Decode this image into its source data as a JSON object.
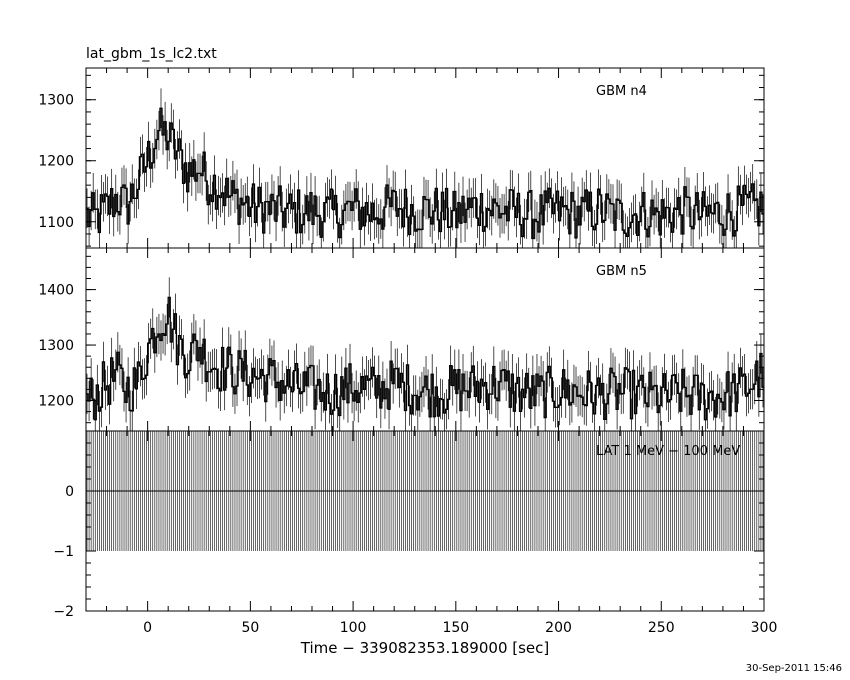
{
  "title": "lat_gbm_1s_lc2.txt",
  "xlabel": "Time − 339082353.189000 [sec]",
  "timestamp": "30-Sep-2011 15:46",
  "chart_data": [
    {
      "type": "line",
      "panel": "top",
      "label": "GBM n4",
      "x_range": [
        -30,
        300
      ],
      "ylim": [
        1057,
        1352
      ],
      "y_ticks": [
        1100,
        1200,
        1300
      ],
      "x": [
        -30,
        -25,
        -20,
        -15,
        -10,
        -5,
        0,
        5,
        10,
        15,
        20,
        25,
        30,
        35,
        40,
        45,
        50,
        60,
        70,
        80,
        90,
        100,
        110,
        120,
        130,
        140,
        150,
        160,
        170,
        180,
        190,
        200,
        210,
        220,
        230,
        240,
        250,
        260,
        270,
        280,
        290,
        300
      ],
      "y": [
        1110,
        1105,
        1120,
        1140,
        1125,
        1160,
        1200,
        1250,
        1240,
        1210,
        1180,
        1190,
        1165,
        1160,
        1140,
        1135,
        1125,
        1120,
        1115,
        1118,
        1112,
        1120,
        1115,
        1125,
        1118,
        1120,
        1110,
        1125,
        1120,
        1115,
        1110,
        1118,
        1112,
        1120,
        1108,
        1115,
        1110,
        1118,
        1110,
        1115,
        1120,
        1125
      ]
    },
    {
      "type": "line",
      "panel": "middle",
      "label": "GBM n5",
      "x_range": [
        -30,
        300
      ],
      "ylim": [
        1145,
        1475
      ],
      "y_ticks": [
        1200,
        1300,
        1400
      ],
      "x": [
        -30,
        -25,
        -20,
        -15,
        -10,
        -5,
        0,
        5,
        10,
        15,
        20,
        25,
        30,
        35,
        40,
        45,
        50,
        60,
        70,
        80,
        90,
        100,
        110,
        120,
        130,
        140,
        150,
        160,
        170,
        180,
        190,
        200,
        210,
        220,
        230,
        240,
        250,
        260,
        270,
        280,
        290,
        300
      ],
      "y": [
        1195,
        1210,
        1230,
        1245,
        1220,
        1230,
        1290,
        1340,
        1360,
        1300,
        1280,
        1300,
        1270,
        1260,
        1255,
        1250,
        1245,
        1240,
        1225,
        1220,
        1215,
        1225,
        1220,
        1230,
        1220,
        1215,
        1220,
        1225,
        1230,
        1215,
        1210,
        1220,
        1215,
        1210,
        1215,
        1210,
        1205,
        1212,
        1205,
        1210,
        1220,
        1250
      ]
    },
    {
      "type": "bar",
      "panel": "bottom",
      "label": "LAT 1 MeV − 100 MeV",
      "x_range": [
        -30,
        300
      ],
      "ylim": [
        -2,
        1
      ],
      "y_ticks": [
        -2,
        -1,
        0
      ],
      "values_range": [
        -1,
        1
      ]
    }
  ]
}
